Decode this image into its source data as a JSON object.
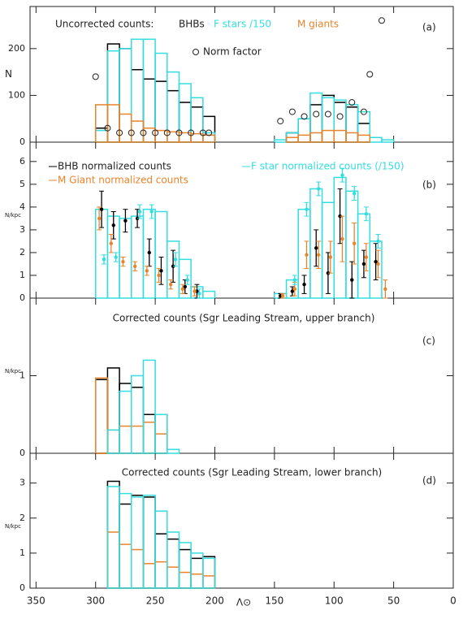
{
  "chart_data": [
    {
      "type": "histogram",
      "title": "Uncorrected counts:",
      "panel_label": "(a)",
      "ylabel": "N",
      "ylim": [
        0,
        290
      ],
      "yticks": [
        0,
        100,
        200
      ],
      "bins": [
        300,
        290,
        280,
        270,
        260,
        250,
        240,
        230,
        220,
        210,
        200,
        190,
        180,
        170,
        160,
        150,
        140,
        130,
        120,
        110,
        100,
        90,
        80,
        70,
        60,
        50
      ],
      "series": [
        {
          "name": "BHBs",
          "color": "#000000",
          "values": [
            30,
            210,
            200,
            155,
            135,
            130,
            110,
            85,
            75,
            55,
            null,
            null,
            null,
            null,
            null,
            null,
            20,
            50,
            80,
            100,
            85,
            75,
            40,
            null,
            null
          ]
        },
        {
          "name": "F stars /150",
          "color": "#33dde0",
          "values": [
            25,
            195,
            200,
            220,
            220,
            190,
            150,
            125,
            95,
            20,
            null,
            null,
            null,
            null,
            null,
            5,
            20,
            50,
            105,
            95,
            90,
            80,
            65,
            10,
            5
          ]
        },
        {
          "name": "M giants",
          "color": "#e8842c",
          "values": [
            80,
            80,
            60,
            45,
            30,
            25,
            22,
            20,
            18,
            15,
            null,
            null,
            null,
            null,
            null,
            null,
            10,
            15,
            20,
            25,
            25,
            20,
            15,
            null,
            null
          ]
        }
      ],
      "scatter": {
        "name": "Norm factor",
        "x": [
          300,
          290,
          280,
          270,
          260,
          250,
          240,
          230,
          220,
          210,
          205,
          145,
          135,
          125,
          115,
          105,
          95,
          85,
          75,
          70,
          60
        ],
        "values": [
          140,
          30,
          20,
          20,
          20,
          20,
          20,
          20,
          20,
          20,
          20,
          45,
          65,
          55,
          60,
          60,
          55,
          85,
          65,
          145,
          260
        ]
      }
    },
    {
      "type": "histogram",
      "panel_label": "(b)",
      "ylabel": "N/kpc",
      "ylim": [
        0,
        6.85
      ],
      "yticks": [
        0,
        1,
        2,
        3,
        4,
        5,
        6
      ],
      "bins": [
        300,
        290,
        280,
        270,
        260,
        250,
        240,
        230,
        220,
        210,
        200,
        190,
        180,
        170,
        160,
        150,
        140,
        130,
        120,
        110,
        100,
        90,
        80,
        70,
        60,
        50
      ],
      "series": [
        {
          "color": "#33dde0",
          "values": [
            3.9,
            3.6,
            3.5,
            3.6,
            3.9,
            3.8,
            2.5,
            1.7,
            0.5,
            0.3,
            null,
            null,
            null,
            null,
            null,
            0.2,
            0.8,
            3.9,
            4.8,
            4.2,
            5.3,
            4.7,
            3.7,
            2.5,
            null
          ]
        }
      ],
      "points": [
        {
          "name": "BHB normalized counts",
          "color": "#000000",
          "x": [
            295,
            285,
            275,
            265,
            255,
            245,
            235,
            225,
            215,
            145,
            135,
            125,
            115,
            105,
            95,
            85,
            75,
            65
          ],
          "values": [
            3.9,
            3.2,
            3.4,
            3.5,
            2.0,
            1.2,
            1.4,
            0.5,
            0.3,
            0.1,
            0.3,
            0.6,
            2.2,
            1.1,
            3.6,
            0.8,
            1.5,
            1.6
          ],
          "errors": [
            0.8,
            0.6,
            0.5,
            0.4,
            0.6,
            0.6,
            0.7,
            0.3,
            0.3,
            0.1,
            0.2,
            0.4,
            0.8,
            0.9,
            1.2,
            0.8,
            0.6,
            0.8
          ]
        },
        {
          "name": "M Giant normalized counts",
          "color": "#e8842c",
          "x": [
            297,
            287,
            277,
            267,
            257,
            247,
            237,
            227,
            217,
            143,
            133,
            123,
            113,
            103,
            93,
            83,
            73,
            63,
            57
          ],
          "values": [
            3.5,
            2.4,
            1.6,
            1.4,
            1.2,
            1.0,
            0.6,
            0.4,
            0.3,
            0.1,
            0.4,
            1.9,
            1.9,
            1.8,
            2.6,
            2.4,
            1.8,
            1.5,
            0.4
          ],
          "errors": [
            0.5,
            0.4,
            0.2,
            0.2,
            0.2,
            0.3,
            0.2,
            0.2,
            0.2,
            0.1,
            0.3,
            0.6,
            0.6,
            0.7,
            1.0,
            0.9,
            0.6,
            0.6,
            0.4
          ]
        },
        {
          "name": "F star normalized counts (/150)",
          "color": "#33dde0",
          "x": [
            293,
            283,
            263,
            253,
            233,
            223,
            213,
            133,
            123,
            113,
            93,
            83,
            73,
            63
          ],
          "values": [
            1.7,
            1.8,
            3.8,
            3.8,
            1.7,
            0.8,
            0.2,
            0.8,
            3.9,
            4.8,
            5.4,
            4.6,
            3.7,
            2.5
          ],
          "errors": [
            0.2,
            0.2,
            0.3,
            0.3,
            0.3,
            0.2,
            0.2,
            0.2,
            0.3,
            0.3,
            0.3,
            0.3,
            0.3,
            0.3
          ]
        }
      ]
    },
    {
      "type": "histogram",
      "title": "Corrected counts (Sgr Leading Stream, upper branch)",
      "panel_label": "(c)",
      "ylabel": "N/kpc",
      "ylim": [
        0,
        2.0
      ],
      "yticks": [
        0,
        1
      ],
      "bins": [
        300,
        290,
        280,
        270,
        260,
        250,
        240,
        230,
        220
      ],
      "series": [
        {
          "color": "#000000",
          "values": [
            0.95,
            1.1,
            0.9,
            0.85,
            0.5,
            0.5,
            null,
            null
          ]
        },
        {
          "color": "#e8842c",
          "values": [
            0.97,
            0.3,
            0.35,
            0.35,
            0.4,
            0.25,
            null,
            null
          ]
        },
        {
          "color": "#33dde0",
          "values": [
            null,
            0.3,
            0.8,
            1.0,
            1.2,
            0.5,
            0.05,
            null
          ]
        }
      ]
    },
    {
      "type": "histogram",
      "title": "Corrected counts (Sgr Leading Stream, lower branch)",
      "panel_label": "(d)",
      "ylabel": "N/kpc",
      "ylim": [
        0,
        3.85
      ],
      "yticks": [
        0,
        1,
        2,
        3
      ],
      "xlim": [
        355,
        0
      ],
      "xticks": [
        350,
        300,
        250,
        200,
        150,
        100,
        50,
        0
      ],
      "xlabel": "Λ⊙",
      "bins": [
        300,
        290,
        280,
        270,
        260,
        250,
        240,
        230,
        220,
        210,
        200
      ],
      "series": [
        {
          "color": "#000000",
          "values": [
            null,
            3.05,
            2.4,
            2.65,
            2.6,
            1.55,
            1.4,
            1.1,
            0.85,
            0.9
          ]
        },
        {
          "color": "#e8842c",
          "values": [
            null,
            1.6,
            1.25,
            1.1,
            0.7,
            0.75,
            0.6,
            0.45,
            0.4,
            0.35
          ]
        },
        {
          "color": "#33dde0",
          "values": [
            null,
            2.9,
            2.7,
            2.6,
            2.65,
            2.2,
            1.6,
            1.3,
            1.0,
            0.85
          ]
        }
      ]
    }
  ]
}
